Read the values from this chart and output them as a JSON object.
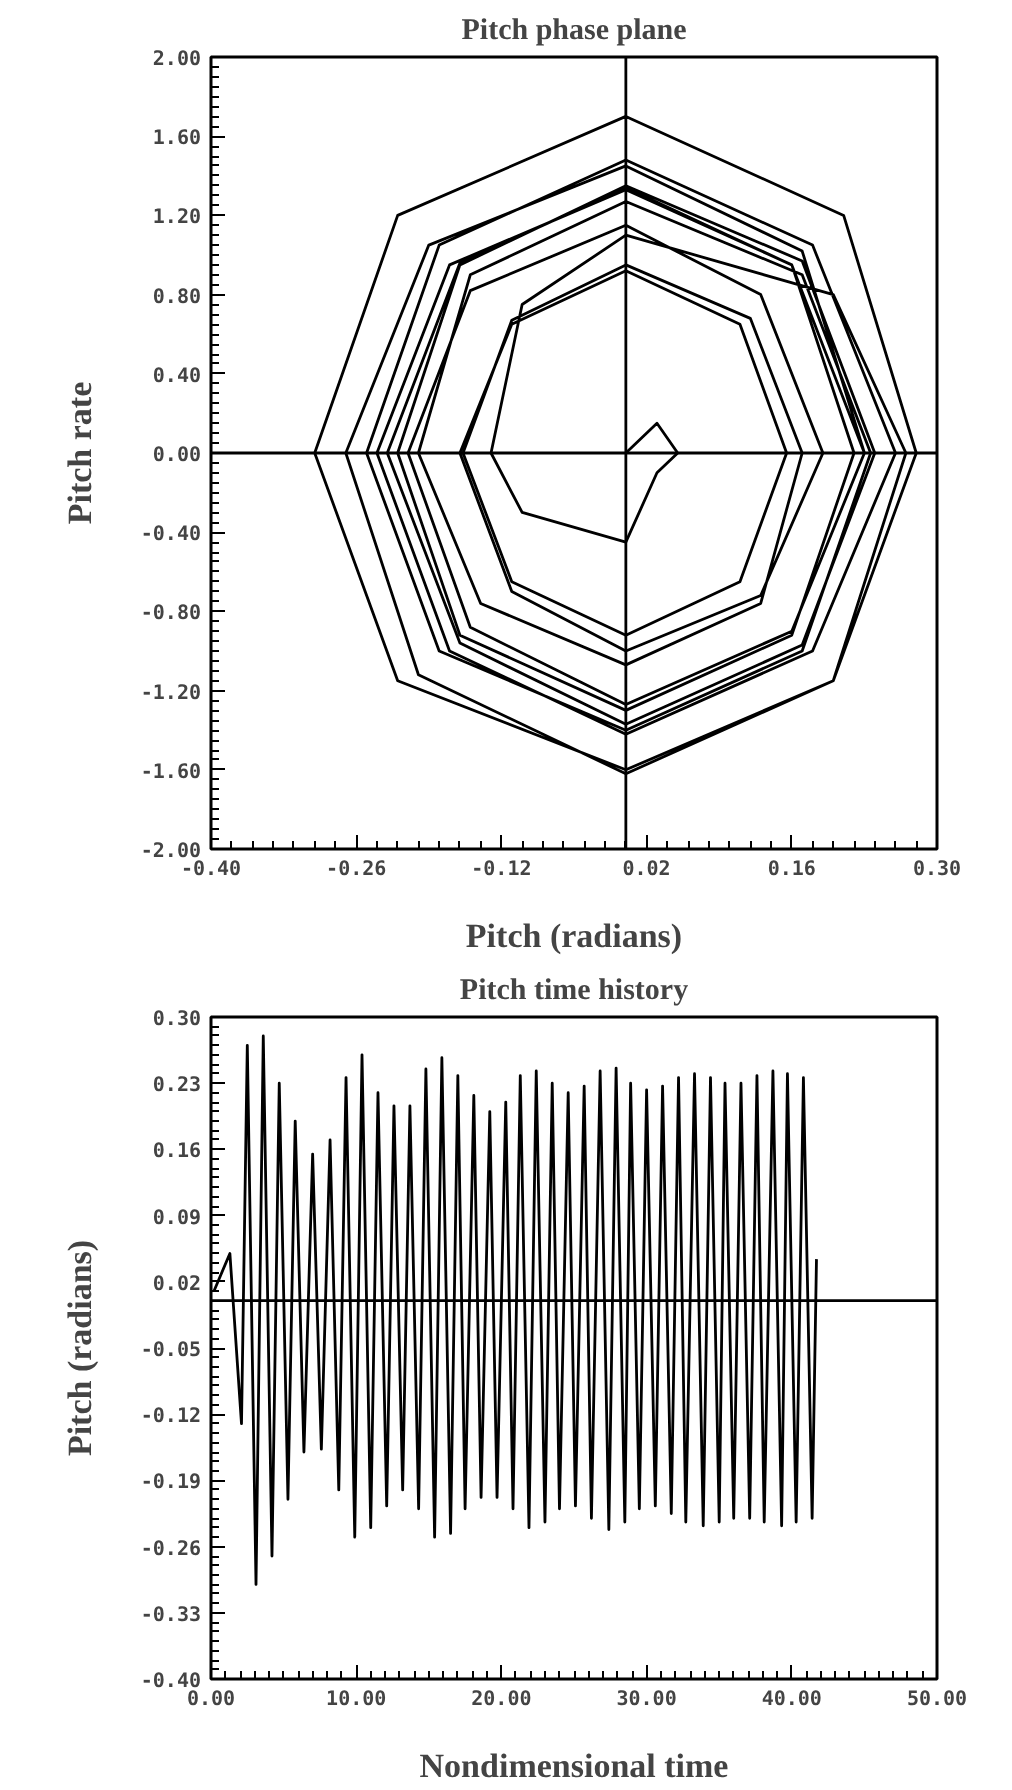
{
  "chart_data": [
    {
      "type": "line",
      "title": "Pitch phase plane",
      "xlabel": "Pitch (radians)",
      "ylabel": "Pitch rate",
      "xlim": [
        -0.4,
        0.3
      ],
      "ylim": [
        -2.0,
        2.0
      ],
      "xticks": [
        {
          "value": -0.4,
          "label": "-0.40"
        },
        {
          "value": -0.26,
          "label": "-0.26"
        },
        {
          "value": -0.12,
          "label": "-0.12"
        },
        {
          "value": 0.02,
          "label": "0.02"
        },
        {
          "value": 0.16,
          "label": "0.16"
        },
        {
          "value": 0.3,
          "label": "0.30"
        }
      ],
      "yticks": [
        {
          "value": 2.0,
          "label": "2.00"
        },
        {
          "value": 1.6,
          "label": "1.60"
        },
        {
          "value": 1.2,
          "label": "1.20"
        },
        {
          "value": 0.8,
          "label": "0.80"
        },
        {
          "value": 0.4,
          "label": "0.40"
        },
        {
          "value": 0.0,
          "label": "0.00"
        },
        {
          "value": -0.4,
          "label": "-0.40"
        },
        {
          "value": -0.8,
          "label": "-0.80"
        },
        {
          "value": -1.2,
          "label": "-1.20"
        },
        {
          "value": -1.6,
          "label": "-1.60"
        },
        {
          "value": -2.0,
          "label": "-2.00"
        }
      ],
      "grid": false,
      "marker": "none",
      "line_style": "solid",
      "ref_lines": [
        {
          "axis": "x",
          "value": 0.0,
          "color": "#000000"
        },
        {
          "axis": "y",
          "value": 0.0,
          "color": "#000000"
        }
      ],
      "series": [
        {
          "color": "#000000",
          "x": [
            0.0,
            0.03,
            0.05,
            0.03,
            0.0,
            -0.1,
            -0.13,
            -0.1,
            0.0,
            0.2,
            0.27,
            0.2,
            0.0,
            -0.22,
            -0.3,
            -0.22,
            0.0,
            0.21,
            0.28,
            0.2,
            0.0,
            -0.2,
            -0.27,
            -0.19,
            0.0,
            0.17,
            0.23,
            0.16,
            0.0,
            -0.15,
            -0.21,
            -0.15,
            0.0,
            0.13,
            0.19,
            0.13,
            0.0,
            -0.11,
            -0.16,
            -0.11,
            0.0,
            0.11,
            0.155,
            0.11,
            0.0,
            -0.11,
            -0.157,
            -0.11,
            0.0,
            0.12,
            0.17,
            0.13,
            0.0,
            -0.14,
            -0.2,
            -0.15,
            0.0,
            0.17,
            0.236,
            0.17,
            0.0,
            -0.18,
            -0.25,
            -0.18,
            0.0,
            0.18,
            0.26,
            0.18,
            0.0,
            -0.17,
            -0.24,
            -0.17,
            0.0,
            0.16,
            0.22,
            0.16,
            0.0,
            -0.16,
            -0.22,
            -0.16,
            0.0,
            0.17,
            0.24,
            0.17,
            0.0,
            -0.16,
            -0.23,
            -0.16,
            0.0,
            0.16,
            0.23
          ],
          "values": [
            0.0,
            0.15,
            0.0,
            -0.1,
            -0.45,
            -0.3,
            0.0,
            0.75,
            1.1,
            0.8,
            0.0,
            -1.15,
            -1.6,
            -1.15,
            0.0,
            1.2,
            1.7,
            1.2,
            0.0,
            -1.15,
            -1.62,
            -1.12,
            0.0,
            1.05,
            1.45,
            1.02,
            0.0,
            -0.9,
            -1.27,
            -0.88,
            0.0,
            0.82,
            1.15,
            0.8,
            0.0,
            -0.72,
            -1.0,
            -0.7,
            0.0,
            0.65,
            0.92,
            0.65,
            0.0,
            -0.65,
            -0.92,
            -0.65,
            0.0,
            0.67,
            0.95,
            0.68,
            0.0,
            -0.76,
            -1.07,
            -0.76,
            0.0,
            0.9,
            1.27,
            0.9,
            0.0,
            -1.0,
            -1.4,
            -1.0,
            0.0,
            1.05,
            1.48,
            1.05,
            0.0,
            -1.0,
            -1.42,
            -1.0,
            0.0,
            0.95,
            1.33,
            0.95,
            0.0,
            -0.92,
            -1.3,
            -0.92,
            0.0,
            0.95,
            1.35,
            0.97,
            0.0,
            -0.97,
            -1.37,
            -0.96,
            0.0,
            0.96,
            1.34,
            0.95,
            0.0
          ]
        }
      ]
    },
    {
      "type": "line",
      "title": "Pitch time history",
      "xlabel": "Nondimensional time",
      "ylabel": "Pitch (radians)",
      "xlim": [
        0.0,
        50.0
      ],
      "ylim": [
        -0.4,
        0.3
      ],
      "xticks": [
        {
          "value": 0,
          "label": "0.00"
        },
        {
          "value": 10,
          "label": "10.00"
        },
        {
          "value": 20,
          "label": "20.00"
        },
        {
          "value": 30,
          "label": "30.00"
        },
        {
          "value": 40,
          "label": "40.00"
        },
        {
          "value": 50,
          "label": "50.00"
        }
      ],
      "yticks": [
        {
          "value": 0.3,
          "label": "0.30"
        },
        {
          "value": 0.23,
          "label": "0.23"
        },
        {
          "value": 0.16,
          "label": "0.16"
        },
        {
          "value": 0.09,
          "label": "0.09"
        },
        {
          "value": 0.02,
          "label": "0.02"
        },
        {
          "value": -0.05,
          "label": "-0.05"
        },
        {
          "value": -0.12,
          "label": "-0.12"
        },
        {
          "value": -0.19,
          "label": "-0.19"
        },
        {
          "value": -0.26,
          "label": "-0.26"
        },
        {
          "value": -0.33,
          "label": "-0.33"
        },
        {
          "value": -0.4,
          "label": "-0.40"
        }
      ],
      "grid": false,
      "marker": "none",
      "line_style": "solid",
      "ref_lines": [
        {
          "axis": "y",
          "value": 0.0,
          "color": "#000000"
        }
      ],
      "series": [
        {
          "color": "#000000",
          "x": [
            0.2,
            1.3,
            2.1,
            2.5,
            3.1,
            3.6,
            4.2,
            4.7,
            5.3,
            5.8,
            6.4,
            7.0,
            7.6,
            8.2,
            8.8,
            9.3,
            9.9,
            10.4,
            11.0,
            11.5,
            12.1,
            12.6,
            13.2,
            13.7,
            14.3,
            14.8,
            15.4,
            15.9,
            16.5,
            17.0,
            17.5,
            18.1,
            18.6,
            19.2,
            19.7,
            20.3,
            20.8,
            21.3,
            21.9,
            22.4,
            23.0,
            23.5,
            24.0,
            24.6,
            25.1,
            25.7,
            26.2,
            26.8,
            27.4,
            27.9,
            28.5,
            28.9,
            29.5,
            30.0,
            30.6,
            31.1,
            31.7,
            32.2,
            32.7,
            33.3,
            33.9,
            34.4,
            35.0,
            35.4,
            36.0,
            36.5,
            37.1,
            37.6,
            38.1,
            38.7,
            39.3,
            39.7,
            40.3,
            40.8,
            41.4,
            41.7
          ],
          "values": [
            0.01,
            0.05,
            -0.13,
            0.27,
            -0.3,
            0.28,
            -0.27,
            0.23,
            -0.21,
            0.19,
            -0.16,
            0.155,
            -0.157,
            0.17,
            -0.2,
            0.236,
            -0.25,
            0.26,
            -0.24,
            0.22,
            -0.217,
            0.206,
            -0.2,
            0.206,
            -0.22,
            0.245,
            -0.25,
            0.257,
            -0.246,
            0.238,
            -0.22,
            0.217,
            -0.208,
            0.2,
            -0.208,
            0.21,
            -0.22,
            0.238,
            -0.24,
            0.243,
            -0.234,
            0.23,
            -0.22,
            0.22,
            -0.217,
            0.227,
            -0.23,
            0.243,
            -0.242,
            0.246,
            -0.234,
            0.23,
            -0.22,
            0.223,
            -0.217,
            0.227,
            -0.225,
            0.236,
            -0.234,
            0.24,
            -0.238,
            0.236,
            -0.234,
            0.23,
            -0.23,
            0.23,
            -0.23,
            0.238,
            -0.234,
            0.243,
            -0.238,
            0.24,
            -0.234,
            0.236,
            -0.23,
            0.044
          ]
        }
      ]
    }
  ]
}
